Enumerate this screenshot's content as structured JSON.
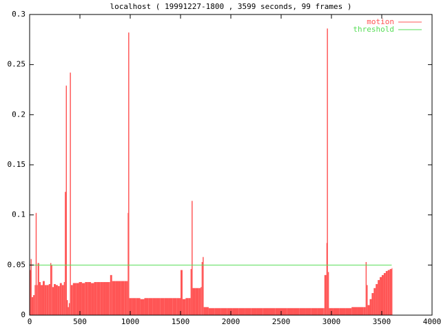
{
  "chart_data": {
    "type": "impulse",
    "title": "localhost ( 19991227-1800 , 3599 seconds, 99 frames )",
    "xlim": [
      0,
      4000
    ],
    "xticks": [
      0,
      500,
      1000,
      1500,
      2000,
      2500,
      3000,
      3500,
      4000
    ],
    "ylim": [
      0,
      0.3
    ],
    "yticks": [
      0,
      0.05,
      0.1,
      0.15,
      0.2,
      0.25,
      0.3
    ],
    "legend": "top-right",
    "series": [
      {
        "name": "motion",
        "color": "#ff5555",
        "x": [
          0,
          10,
          20,
          35,
          50,
          60,
          70,
          80,
          95,
          110,
          130,
          150,
          170,
          190,
          205,
          215,
          225,
          240,
          260,
          280,
          300,
          320,
          340,
          350,
          360,
          370,
          380,
          390,
          400,
          410,
          430,
          460,
          490,
          520,
          550,
          580,
          610,
          640,
          670,
          700,
          730,
          760,
          790,
          800,
          820,
          850,
          880,
          910,
          940,
          965,
          975,
          980,
          990,
          1020,
          1060,
          1100,
          1140,
          1180,
          1220,
          1260,
          1300,
          1340,
          1380,
          1420,
          1460,
          1490,
          1500,
          1520,
          1550,
          1580,
          1600,
          1610,
          1620,
          1650,
          1680,
          1700,
          1710,
          1720,
          1730,
          1780,
          1840,
          1900,
          1960,
          2020,
          2080,
          2140,
          2200,
          2260,
          2320,
          2380,
          2440,
          2500,
          2560,
          2620,
          2680,
          2740,
          2800,
          2860,
          2920,
          2930,
          2950,
          2955,
          2965,
          2975,
          3020,
          3080,
          3140,
          3200,
          3260,
          3320,
          3340,
          3350,
          3360,
          3380,
          3400,
          3420,
          3440,
          3460,
          3480,
          3500,
          3520,
          3540,
          3560,
          3580,
          3599
        ],
        "values": [
          0.045,
          0.056,
          0.018,
          0.02,
          0.03,
          0.102,
          0.03,
          0.052,
          0.033,
          0.03,
          0.034,
          0.03,
          0.03,
          0.031,
          0.052,
          0.05,
          0.028,
          0.031,
          0.03,
          0.029,
          0.032,
          0.03,
          0.033,
          0.123,
          0.229,
          0.015,
          0.008,
          0.012,
          0.242,
          0.03,
          0.032,
          0.032,
          0.033,
          0.032,
          0.033,
          0.033,
          0.032,
          0.033,
          0.033,
          0.033,
          0.033,
          0.033,
          0.033,
          0.04,
          0.034,
          0.034,
          0.034,
          0.034,
          0.034,
          0.034,
          0.102,
          0.282,
          0.017,
          0.017,
          0.017,
          0.016,
          0.017,
          0.017,
          0.017,
          0.017,
          0.017,
          0.017,
          0.017,
          0.017,
          0.017,
          0.017,
          0.045,
          0.016,
          0.017,
          0.017,
          0.046,
          0.114,
          0.027,
          0.027,
          0.027,
          0.028,
          0.053,
          0.058,
          0.008,
          0.007,
          0.007,
          0.007,
          0.007,
          0.007,
          0.007,
          0.007,
          0.007,
          0.007,
          0.007,
          0.007,
          0.007,
          0.007,
          0.007,
          0.007,
          0.007,
          0.007,
          0.007,
          0.007,
          0.007,
          0.04,
          0.072,
          0.286,
          0.043,
          0.007,
          0.007,
          0.007,
          0.007,
          0.008,
          0.008,
          0.008,
          0.053,
          0.03,
          0.01,
          0.016,
          0.022,
          0.027,
          0.031,
          0.035,
          0.038,
          0.04,
          0.042,
          0.044,
          0.045,
          0.046,
          0.047
        ]
      },
      {
        "name": "threshold",
        "color": "#55dd55",
        "style": "line",
        "x": [
          0,
          3599
        ],
        "values": [
          0.05,
          0.05
        ]
      }
    ]
  }
}
